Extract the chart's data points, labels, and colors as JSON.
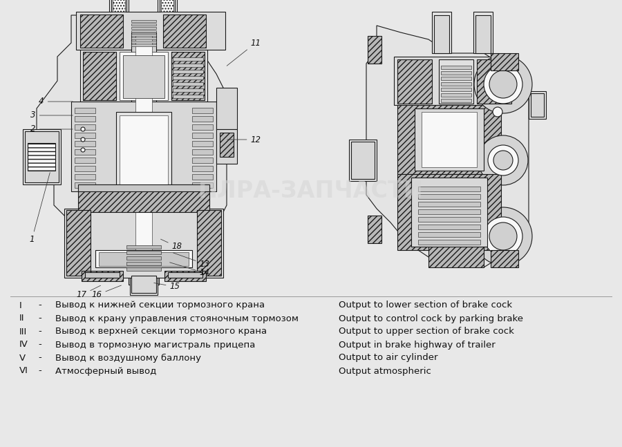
{
  "bg_color": "#e8e8e8",
  "drawing_bg": "#f2f2f2",
  "ec": "#1a1a1a",
  "hatch_fc": "#b8b8b8",
  "light_fc": "#e4e4e4",
  "mid_fc": "#c8c8c8",
  "white_fc": "#f8f8f8",
  "watermark_text": "ПЛРА-ЗАПЧАСТИ",
  "watermark_color": "#d5d5d5",
  "text_color": "#111111",
  "legend_fs": 9.5,
  "part_fs": 8.5,
  "legend_rows": [
    {
      "roman": "I",
      "dash": "-",
      "ru": "Вывод к нижней секции тормозного крана",
      "en": "Output to lower section of brake cock"
    },
    {
      "roman": "II",
      "dash": "-",
      "ru": "Вывод к крану управления стояночным тормозом",
      "en": "Output to control cock by parking brake"
    },
    {
      "roman": "III",
      "dash": "-",
      "ru": "Вывод к верхней секции тормозного крана",
      "en": "Output to upper section of brake cock"
    },
    {
      "roman": "IV",
      "dash": "-",
      "ru": "Вывод в тормозную магистраль прицепа",
      "en": "Output in brake highway of trailer"
    },
    {
      "roman": "V",
      "dash": "-",
      "ru": "Вывод к воздушному баллону",
      "en": "Output to air cylinder"
    },
    {
      "roman": "VI",
      "dash": "-",
      "ru": "Атмосферный вывод",
      "en": "Output atmospheric"
    }
  ]
}
